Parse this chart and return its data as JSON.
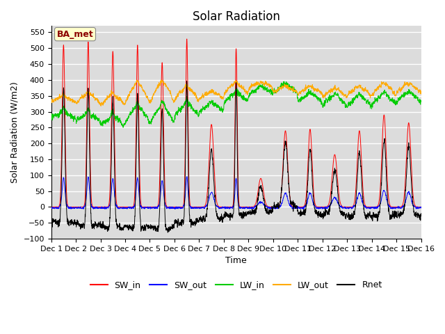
{
  "title": "Solar Radiation",
  "xlabel": "Time",
  "ylabel": "Solar Radiation (W/m2)",
  "ylim": [
    -100,
    570
  ],
  "n_days": 15,
  "n_per_day": 144,
  "legend_entries": [
    "SW_in",
    "SW_out",
    "LW_in",
    "LW_out",
    "Rnet"
  ],
  "line_colors": [
    "#ff0000",
    "#0000ff",
    "#00cc00",
    "#ffaa00",
    "#000000"
  ],
  "plot_bg_color": "#dcdcdc",
  "annotation_text": "BA_met",
  "annotation_color": "#8b0000",
  "annotation_bg": "#ffffcc",
  "title_fontsize": 12,
  "axis_label_fontsize": 9,
  "tick_fontsize": 8,
  "legend_fontsize": 9,
  "sw_peaks": [
    510,
    520,
    490,
    510,
    455,
    530,
    260,
    500,
    90,
    240,
    245,
    165,
    240,
    290,
    265
  ],
  "sw_widths": [
    0.055,
    0.052,
    0.055,
    0.05,
    0.055,
    0.045,
    0.09,
    0.042,
    0.1,
    0.09,
    0.08,
    0.1,
    0.085,
    0.085,
    0.09
  ],
  "sw_offsets": [
    0.5,
    0.5,
    0.5,
    0.5,
    0.5,
    0.5,
    0.5,
    0.5,
    0.5,
    0.5,
    0.5,
    0.5,
    0.5,
    0.5,
    0.5
  ],
  "lw_in_base": [
    280,
    270,
    255,
    265,
    260,
    285,
    300,
    330,
    355,
    360,
    330,
    315,
    315,
    320,
    330
  ],
  "lw_in_amp": [
    15,
    20,
    25,
    45,
    55,
    35,
    20,
    25,
    20,
    20,
    25,
    35,
    30,
    30,
    25
  ],
  "lw_out_base": [
    330,
    325,
    320,
    325,
    325,
    335,
    340,
    355,
    375,
    360,
    355,
    345,
    350,
    350,
    360
  ],
  "lw_out_amp": [
    15,
    30,
    30,
    60,
    65,
    40,
    20,
    30,
    15,
    15,
    20,
    25,
    25,
    35,
    25
  ]
}
